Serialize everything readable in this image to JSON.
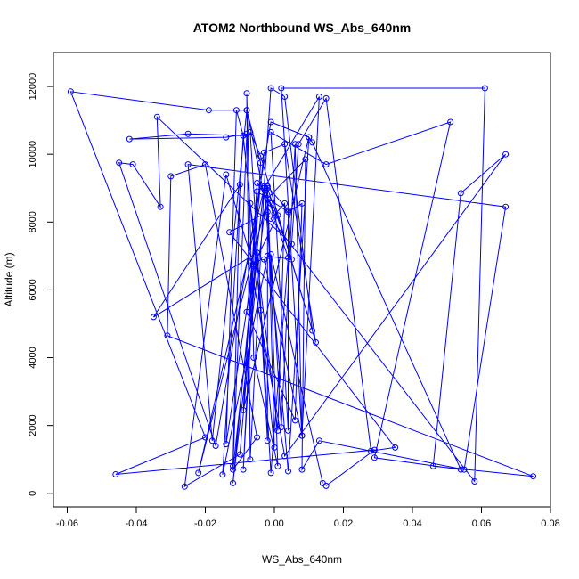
{
  "chart_data": {
    "type": "scatter",
    "title": "ATOM2 Northbound WS_Abs_640nm",
    "xlabel": "WS_Abs_640nm",
    "ylabel": "Altitude (m)",
    "xlim": [
      -0.064,
      0.08
    ],
    "ylim": [
      -400,
      13000
    ],
    "xticks": [
      -0.06,
      -0.04,
      -0.02,
      0.0,
      0.02,
      0.04,
      0.06,
      0.08
    ],
    "xtick_labels": [
      "-0.06",
      "-0.04",
      "-0.02",
      "0.00",
      "0.02",
      "0.04",
      "0.06",
      "0.08"
    ],
    "yticks": [
      0,
      2000,
      4000,
      6000,
      8000,
      10000,
      12000
    ],
    "ytick_labels": [
      "0",
      "2000",
      "4000",
      "6000",
      "8000",
      "10000",
      "12000"
    ],
    "grid": false,
    "legend": "none",
    "color": "#0000ff",
    "connected": true,
    "points": [
      {
        "x": 0.015,
        "y": 220
      },
      {
        "x": 0.029,
        "y": 1280
      },
      {
        "x": -0.046,
        "y": 560
      },
      {
        "x": -0.02,
        "y": 1650
      },
      {
        "x": -0.059,
        "y": 11850
      },
      {
        "x": -0.019,
        "y": 11300
      },
      {
        "x": -0.008,
        "y": 11300
      },
      {
        "x": -0.004,
        "y": 9750
      },
      {
        "x": -0.009,
        "y": 700
      },
      {
        "x": -0.005,
        "y": 8900
      },
      {
        "x": 0.004,
        "y": 8300
      },
      {
        "x": 0.008,
        "y": 8550
      },
      {
        "x": 0.006,
        "y": 2150
      },
      {
        "x": -0.008,
        "y": 5350
      },
      {
        "x": -0.003,
        "y": 10050
      },
      {
        "x": 0.003,
        "y": 10300
      },
      {
        "x": 0.012,
        "y": 4450
      },
      {
        "x": 0.001,
        "y": 8200
      },
      {
        "x": -0.006,
        "y": 6750
      },
      {
        "x": -0.014,
        "y": 1450
      },
      {
        "x": -0.011,
        "y": 11300
      },
      {
        "x": -0.009,
        "y": 10550
      },
      {
        "x": -0.025,
        "y": 10600
      },
      {
        "x": -0.042,
        "y": 10450
      },
      {
        "x": -0.014,
        "y": 10500
      },
      {
        "x": -0.008,
        "y": 10600
      },
      {
        "x": -0.012,
        "y": 800
      },
      {
        "x": -0.01,
        "y": 9100
      },
      {
        "x": -0.035,
        "y": 5200
      },
      {
        "x": -0.005,
        "y": 7100
      },
      {
        "x": -0.01,
        "y": 1150
      },
      {
        "x": -0.026,
        "y": 200
      },
      {
        "x": -0.014,
        "y": 9400
      },
      {
        "x": -0.006,
        "y": 6700
      },
      {
        "x": -0.012,
        "y": 300
      },
      {
        "x": -0.002,
        "y": 9050
      },
      {
        "x": 0.004,
        "y": 8350
      },
      {
        "x": 0.004,
        "y": 1850
      },
      {
        "x": -0.001,
        "y": 10650
      },
      {
        "x": 0.015,
        "y": 9700
      },
      {
        "x": 0.051,
        "y": 10950
      },
      {
        "x": 0.029,
        "y": 1050
      },
      {
        "x": 0.054,
        "y": 700
      },
      {
        "x": 0.011,
        "y": 10350
      },
      {
        "x": 0.01,
        "y": 10500
      },
      {
        "x": 0.004,
        "y": 650
      },
      {
        "x": -0.003,
        "y": 9000
      },
      {
        "x": 0.013,
        "y": 11700
      },
      {
        "x": 0.008,
        "y": 1700
      },
      {
        "x": 0.002,
        "y": 11950
      },
      {
        "x": 0.061,
        "y": 11950
      },
      {
        "x": 0.058,
        "y": 350
      },
      {
        "x": -0.001,
        "y": 8100
      },
      {
        "x": 0.003,
        "y": 8550
      },
      {
        "x": 0.001,
        "y": 1850
      },
      {
        "x": -0.007,
        "y": 8550
      },
      {
        "x": -0.004,
        "y": 5400
      },
      {
        "x": -0.002,
        "y": 1550
      },
      {
        "x": -0.002,
        "y": 9050
      },
      {
        "x": 0.0,
        "y": 1350
      },
      {
        "x": -0.009,
        "y": 10550
      },
      {
        "x": -0.015,
        "y": 550
      },
      {
        "x": -0.002,
        "y": 7000
      },
      {
        "x": 0.005,
        "y": 6900
      },
      {
        "x": -0.002,
        "y": 9000
      },
      {
        "x": 0.001,
        "y": 800
      },
      {
        "x": -0.006,
        "y": 4000
      },
      {
        "x": -0.008,
        "y": 11800
      },
      {
        "x": -0.007,
        "y": 1000
      },
      {
        "x": -0.003,
        "y": 9000
      },
      {
        "x": -0.022,
        "y": 600
      },
      {
        "x": -0.002,
        "y": 8700
      },
      {
        "x": 0.009,
        "y": 9850
      },
      {
        "x": 0.008,
        "y": 700
      },
      {
        "x": 0.013,
        "y": 1550
      },
      {
        "x": 0.055,
        "y": 700
      },
      {
        "x": 0.067,
        "y": 8450
      },
      {
        "x": -0.025,
        "y": 9700
      },
      {
        "x": -0.018,
        "y": 1550
      },
      {
        "x": -0.008,
        "y": 11300
      },
      {
        "x": -0.002,
        "y": 8300
      },
      {
        "x": -0.013,
        "y": 7700
      },
      {
        "x": 0.035,
        "y": 1350
      },
      {
        "x": 0.028,
        "y": 1250
      },
      {
        "x": 0.015,
        "y": 11650
      },
      {
        "x": 0.007,
        "y": 10300
      },
      {
        "x": 0.005,
        "y": 7350
      },
      {
        "x": -0.034,
        "y": 11100
      },
      {
        "x": -0.033,
        "y": 8450
      },
      {
        "x": -0.041,
        "y": 9700
      },
      {
        "x": -0.045,
        "y": 9750
      },
      {
        "x": -0.017,
        "y": 1400
      },
      {
        "x": -0.001,
        "y": 10950
      },
      {
        "x": 0.01,
        "y": 10500
      },
      {
        "x": -0.009,
        "y": 2450
      },
      {
        "x": -0.005,
        "y": 9150
      },
      {
        "x": -0.001,
        "y": 8550
      },
      {
        "x": 0.0,
        "y": 8250
      },
      {
        "x": -0.003,
        "y": 9000
      },
      {
        "x": -0.001,
        "y": 11950
      },
      {
        "x": 0.003,
        "y": 11700
      },
      {
        "x": 0.011,
        "y": 4800
      },
      {
        "x": -0.004,
        "y": 9950
      },
      {
        "x": -0.007,
        "y": 10650
      },
      {
        "x": -0.001,
        "y": 600
      },
      {
        "x": 0.004,
        "y": 6950
      },
      {
        "x": -0.003,
        "y": 9050
      },
      {
        "x": -0.012,
        "y": 700
      },
      {
        "x": -0.005,
        "y": 1650
      },
      {
        "x": -0.02,
        "y": 9700
      },
      {
        "x": -0.03,
        "y": 9350
      },
      {
        "x": -0.031,
        "y": 4650
      },
      {
        "x": 0.075,
        "y": 500
      },
      {
        "x": 0.046,
        "y": 800
      },
      {
        "x": 0.054,
        "y": 8850
      },
      {
        "x": 0.067,
        "y": 10000
      },
      {
        "x": 0.003,
        "y": 1100
      },
      {
        "x": -0.007,
        "y": 6800
      },
      {
        "x": -0.003,
        "y": 6900
      },
      {
        "x": 0.008,
        "y": 1700
      },
      {
        "x": 0.006,
        "y": 10300
      },
      {
        "x": 0.002,
        "y": 1950
      },
      {
        "x": -0.001,
        "y": 7050
      },
      {
        "x": 0.014,
        "y": 300
      }
    ]
  }
}
